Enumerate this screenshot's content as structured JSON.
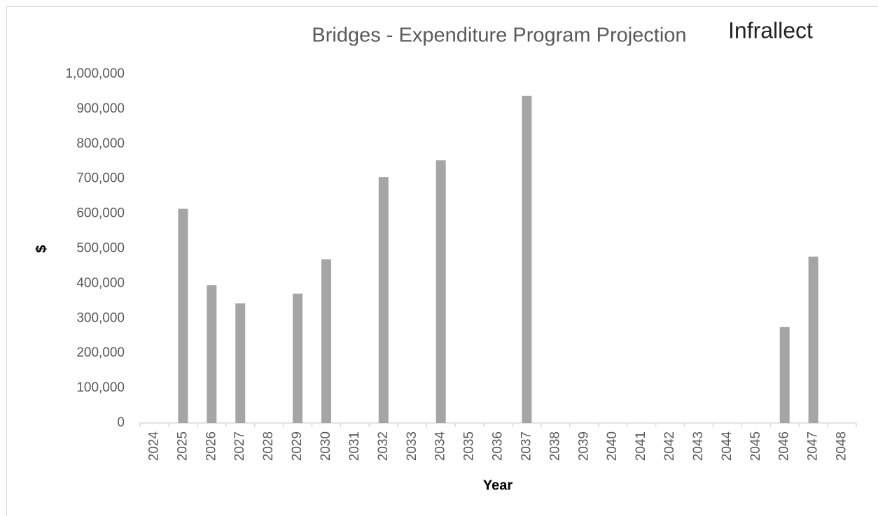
{
  "chart_data": {
    "type": "bar",
    "title": "Bridges - Expenditure Program Projection",
    "logo": "Infrallect",
    "x_label": "Year",
    "y_label": "$",
    "categories": [
      "2024",
      "2025",
      "2026",
      "2027",
      "2028",
      "2029",
      "2030",
      "2031",
      "2032",
      "2033",
      "2034",
      "2035",
      "2036",
      "2037",
      "2038",
      "2039",
      "2040",
      "2041",
      "2042",
      "2043",
      "2044",
      "2045",
      "2046",
      "2047",
      "2048"
    ],
    "values": [
      0,
      614000,
      395000,
      343000,
      0,
      371000,
      469000,
      0,
      705000,
      0,
      753000,
      0,
      0,
      938000,
      0,
      0,
      0,
      0,
      0,
      0,
      0,
      0,
      275000,
      477000,
      0
    ],
    "color": "#a5a5a5",
    "ylim": [
      0,
      1000000
    ],
    "yticks": [
      0,
      {
        "value": 100000,
        "label": "100,000"
      },
      {
        "value": 200000,
        "label": "200,000"
      },
      {
        "value": 300000,
        "label": "300,000"
      },
      {
        "value": 400000,
        "label": "400,000"
      },
      {
        "value": 500000,
        "label": "500,000"
      },
      {
        "value": 600000,
        "label": "600,000"
      },
      {
        "value": 700000,
        "label": "700,000"
      },
      {
        "value": 800000,
        "label": "800,000"
      },
      {
        "value": 900000,
        "label": "900,000"
      },
      {
        "value": 1000000,
        "label": "1,000,000"
      }
    ],
    "grid": false
  }
}
